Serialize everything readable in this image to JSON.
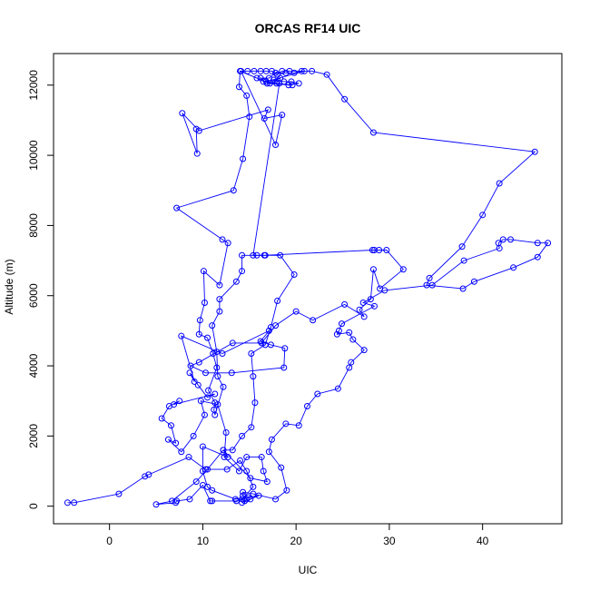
{
  "chart_data": {
    "type": "line",
    "title": "ORCAS RF14 UIC",
    "xlabel": "UIC",
    "ylabel": "Altitude (m)",
    "xlim": [
      -6,
      48.5
    ],
    "ylim": [
      -500,
      12900
    ],
    "xticks": [
      0,
      10,
      20,
      30,
      40
    ],
    "yticks": [
      0,
      2000,
      4000,
      6000,
      8000,
      10000,
      12000
    ],
    "grid": false,
    "legend": "none",
    "colors": {
      "series": "#0000ff",
      "axis": "#000000",
      "background": "#ffffff"
    },
    "series": [
      {
        "marker": "open-circle",
        "points": [
          [
            -4.5,
            100
          ],
          [
            -3.8,
            100
          ],
          [
            1.0,
            350
          ],
          [
            3.8,
            850
          ],
          [
            4.2,
            900
          ],
          [
            8.5,
            1400
          ],
          [
            10.3,
            1050
          ],
          [
            12.6,
            1050
          ],
          [
            14.0,
            1300
          ],
          [
            14.7,
            1000
          ],
          [
            15.4,
            550
          ],
          [
            14.2,
            200
          ],
          [
            13.6,
            150
          ],
          [
            11.0,
            150
          ],
          [
            10.8,
            150
          ],
          [
            10.0,
            600
          ],
          [
            8.6,
            200
          ],
          [
            7.2,
            150
          ],
          [
            7.1,
            100
          ],
          [
            5.0,
            50
          ],
          [
            6.7,
            150
          ],
          [
            9.3,
            700
          ],
          [
            10.5,
            1050
          ],
          [
            12.2,
            1600
          ],
          [
            13.2,
            1600
          ],
          [
            14.2,
            2000
          ],
          [
            15.2,
            2250
          ],
          [
            15.6,
            2950
          ],
          [
            15.4,
            3700
          ],
          [
            15.2,
            4350
          ],
          [
            16.7,
            4600
          ],
          [
            17.3,
            5100
          ],
          [
            18.0,
            5850
          ],
          [
            19.8,
            6600
          ],
          [
            18.3,
            7150
          ],
          [
            16.7,
            7150
          ],
          [
            14.2,
            7150
          ],
          [
            14.2,
            6700
          ],
          [
            13.6,
            6400
          ],
          [
            11.8,
            5900
          ],
          [
            11.8,
            5550
          ],
          [
            11.0,
            5150
          ],
          [
            11.5,
            4400
          ],
          [
            11.6,
            3700
          ],
          [
            12.2,
            3400
          ],
          [
            11.3,
            2600
          ],
          [
            11.2,
            2750
          ],
          [
            11.3,
            2950
          ],
          [
            10.6,
            3300
          ],
          [
            11.5,
            3950
          ],
          [
            11.1,
            4350
          ],
          [
            10.5,
            4800
          ],
          [
            9.6,
            4900
          ],
          [
            9.7,
            5300
          ],
          [
            10.2,
            5800
          ],
          [
            10.1,
            6700
          ],
          [
            11.8,
            6300
          ],
          [
            12.7,
            7500
          ],
          [
            12.1,
            7600
          ],
          [
            7.2,
            8500
          ],
          [
            13.3,
            9000
          ],
          [
            14.3,
            9900
          ],
          [
            15.0,
            11100
          ],
          [
            14.7,
            11700
          ],
          [
            13.9,
            11950
          ],
          [
            14.0,
            12400
          ],
          [
            15.8,
            12200
          ],
          [
            17.2,
            12050
          ],
          [
            18.2,
            12050
          ],
          [
            19.2,
            12000
          ],
          [
            20.3,
            12050
          ],
          [
            19.5,
            12100
          ],
          [
            18.7,
            12100
          ],
          [
            17.6,
            12150
          ],
          [
            16.5,
            12100
          ],
          [
            16.2,
            12200
          ],
          [
            17.1,
            12200
          ],
          [
            17.8,
            12350
          ],
          [
            18.9,
            12350
          ],
          [
            19.8,
            12350
          ],
          [
            20.6,
            12400
          ],
          [
            21.7,
            12400
          ],
          [
            23.3,
            12300
          ],
          [
            25.2,
            11600
          ],
          [
            28.3,
            10650
          ],
          [
            45.6,
            10100
          ],
          [
            41.8,
            9200
          ],
          [
            40.0,
            8300
          ],
          [
            37.8,
            7400
          ],
          [
            34.3,
            6500
          ],
          [
            34.0,
            6300
          ],
          [
            37.9,
            6200
          ],
          [
            39.1,
            6400
          ],
          [
            43.3,
            6800
          ],
          [
            45.9,
            7100
          ],
          [
            47.0,
            7500
          ],
          [
            45.9,
            7500
          ],
          [
            43.0,
            7600
          ],
          [
            42.2,
            7600
          ],
          [
            41.7,
            7500
          ],
          [
            41.8,
            7350
          ],
          [
            38.0,
            7000
          ],
          [
            34.6,
            6300
          ],
          [
            29.5,
            6150
          ],
          [
            27.2,
            5800
          ],
          [
            28.4,
            5700
          ],
          [
            24.9,
            5200
          ],
          [
            24.6,
            5000
          ],
          [
            24.4,
            4900
          ],
          [
            25.7,
            4950
          ],
          [
            26.1,
            4750
          ],
          [
            27.3,
            4450
          ],
          [
            25.9,
            4100
          ],
          [
            25.7,
            3950
          ],
          [
            24.5,
            3350
          ],
          [
            22.3,
            3200
          ],
          [
            21.2,
            2850
          ],
          [
            20.3,
            2300
          ],
          [
            18.9,
            2350
          ],
          [
            17.4,
            1900
          ],
          [
            17.1,
            1550
          ],
          [
            18.4,
            1100
          ],
          [
            19.0,
            450
          ],
          [
            17.8,
            200
          ],
          [
            15.4,
            350
          ],
          [
            14.3,
            400
          ],
          [
            14.3,
            300
          ],
          [
            14.7,
            200
          ],
          [
            14.5,
            150
          ]
        ]
      },
      {
        "marker": "open-circle",
        "points": [
          [
            9.3,
            10750
          ],
          [
            9.4,
            10050
          ],
          [
            7.8,
            11200
          ],
          [
            9.6,
            10700
          ],
          [
            17.0,
            11300
          ],
          [
            16.6,
            11050
          ],
          [
            18.5,
            11150
          ],
          [
            17.8,
            10300
          ],
          [
            14.1,
            12400
          ],
          [
            14.8,
            12400
          ],
          [
            15.5,
            12400
          ],
          [
            16.2,
            12400
          ],
          [
            16.8,
            12400
          ],
          [
            17.4,
            12400
          ],
          [
            18.0,
            12300
          ],
          [
            18.5,
            12400
          ],
          [
            19.3,
            12400
          ],
          [
            20.9,
            12400
          ],
          [
            16.8,
            12100
          ],
          [
            17.9,
            12050
          ],
          [
            19.6,
            12000
          ],
          [
            16.9,
            12050
          ],
          [
            18.3,
            12200
          ],
          [
            15.4,
            7150
          ],
          [
            15.8,
            7150
          ],
          [
            16.6,
            7150
          ],
          [
            28.2,
            7300
          ],
          [
            28.4,
            7300
          ],
          [
            28.9,
            7300
          ],
          [
            29.7,
            7300
          ],
          [
            31.5,
            6750
          ],
          [
            29.0,
            6200
          ],
          [
            28.3,
            6750
          ],
          [
            28.0,
            5900
          ],
          [
            26.8,
            5600
          ],
          [
            27.3,
            5400
          ],
          [
            25.2,
            5750
          ],
          [
            21.8,
            5300
          ],
          [
            20.0,
            5550
          ],
          [
            17.8,
            5150
          ],
          [
            16.3,
            4650
          ],
          [
            13.2,
            4650
          ],
          [
            9.6,
            4100
          ],
          [
            8.7,
            4000
          ],
          [
            10.3,
            3800
          ],
          [
            13.1,
            3800
          ],
          [
            18.7,
            3950
          ],
          [
            18.8,
            4500
          ],
          [
            17.3,
            4600
          ],
          [
            16.2,
            4700
          ],
          [
            17.1,
            5000
          ],
          [
            12.1,
            4350
          ],
          [
            7.7,
            4850
          ],
          [
            9.1,
            3550
          ],
          [
            8.6,
            3800
          ],
          [
            9.5,
            3450
          ],
          [
            10.5,
            3100
          ],
          [
            11.3,
            3200
          ],
          [
            6.9,
            2900
          ],
          [
            7.5,
            3000
          ],
          [
            6.4,
            2850
          ],
          [
            5.6,
            2500
          ],
          [
            6.6,
            2300
          ],
          [
            7.1,
            1800
          ],
          [
            6.3,
            1900
          ],
          [
            7.7,
            1550
          ],
          [
            9.0,
            2000
          ],
          [
            10.2,
            2600
          ],
          [
            9.8,
            3000
          ],
          [
            11.6,
            2900
          ],
          [
            12.5,
            2100
          ],
          [
            12.3,
            1400
          ],
          [
            13.9,
            1000
          ],
          [
            14.7,
            1400
          ],
          [
            16.3,
            1400
          ],
          [
            16.5,
            1000
          ],
          [
            16.9,
            700
          ],
          [
            15.1,
            800
          ],
          [
            12.2,
            1600
          ],
          [
            12.7,
            1400
          ],
          [
            10.0,
            1700
          ],
          [
            10.0,
            1000
          ],
          [
            10.5,
            550
          ],
          [
            11.0,
            450
          ],
          [
            13.5,
            200
          ],
          [
            14.9,
            250
          ],
          [
            16.0,
            300
          ],
          [
            15.1,
            200
          ],
          [
            14.2,
            100
          ]
        ]
      }
    ]
  }
}
